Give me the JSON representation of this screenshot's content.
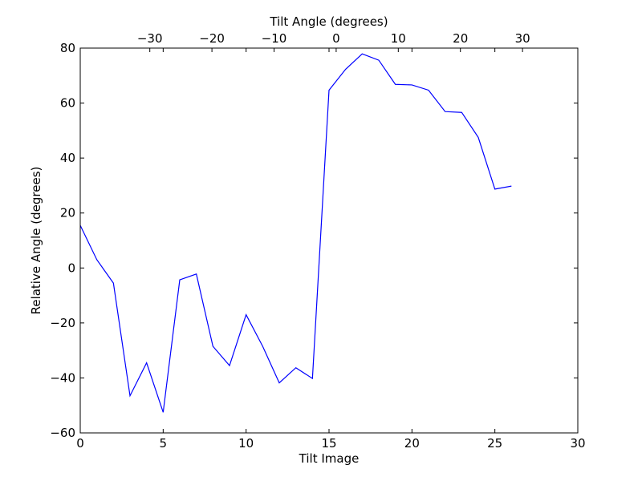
{
  "chart_data": {
    "type": "line",
    "title": "",
    "xlabel": "Tilt Image",
    "ylabel": "Relative Angle (degrees)",
    "x2label": "Tilt Angle (degrees)",
    "xlim": [
      0,
      30
    ],
    "ylim": [
      -60,
      80
    ],
    "x2lim": [
      -41.2,
      38.9
    ],
    "xticks": [
      0,
      5,
      10,
      15,
      20,
      25,
      30
    ],
    "yticks": [
      -60,
      -40,
      -20,
      0,
      20,
      40,
      60,
      80
    ],
    "x2ticks": [
      -30,
      -20,
      -10,
      0,
      10,
      20,
      30
    ],
    "xtick_labels": [
      "0",
      "5",
      "10",
      "15",
      "20",
      "25",
      "30"
    ],
    "ytick_labels": [
      "−60",
      "−40",
      "−20",
      "0",
      "20",
      "40",
      "60",
      "80"
    ],
    "x2tick_labels": [
      "−30",
      "−20",
      "−10",
      "0",
      "10",
      "20",
      "30"
    ],
    "grid": false,
    "series": [
      {
        "color": "#0000ff",
        "x": [
          0,
          1,
          2,
          3,
          4,
          5,
          6,
          7,
          8,
          9,
          10,
          11,
          12,
          13,
          14,
          15,
          16,
          17,
          18,
          19,
          20,
          21,
          22,
          23,
          24,
          25,
          26
        ],
        "values": [
          15.5,
          3.0,
          -5.5,
          -46.5,
          -34.5,
          -52.5,
          -4.3,
          -2.2,
          -28.5,
          -35.5,
          -17.0,
          -28.5,
          -41.8,
          -36.3,
          -40.2,
          64.7,
          72.3,
          77.9,
          75.6,
          66.8,
          66.6,
          64.7,
          56.9,
          56.6,
          47.5,
          28.7,
          29.8
        ]
      }
    ]
  }
}
